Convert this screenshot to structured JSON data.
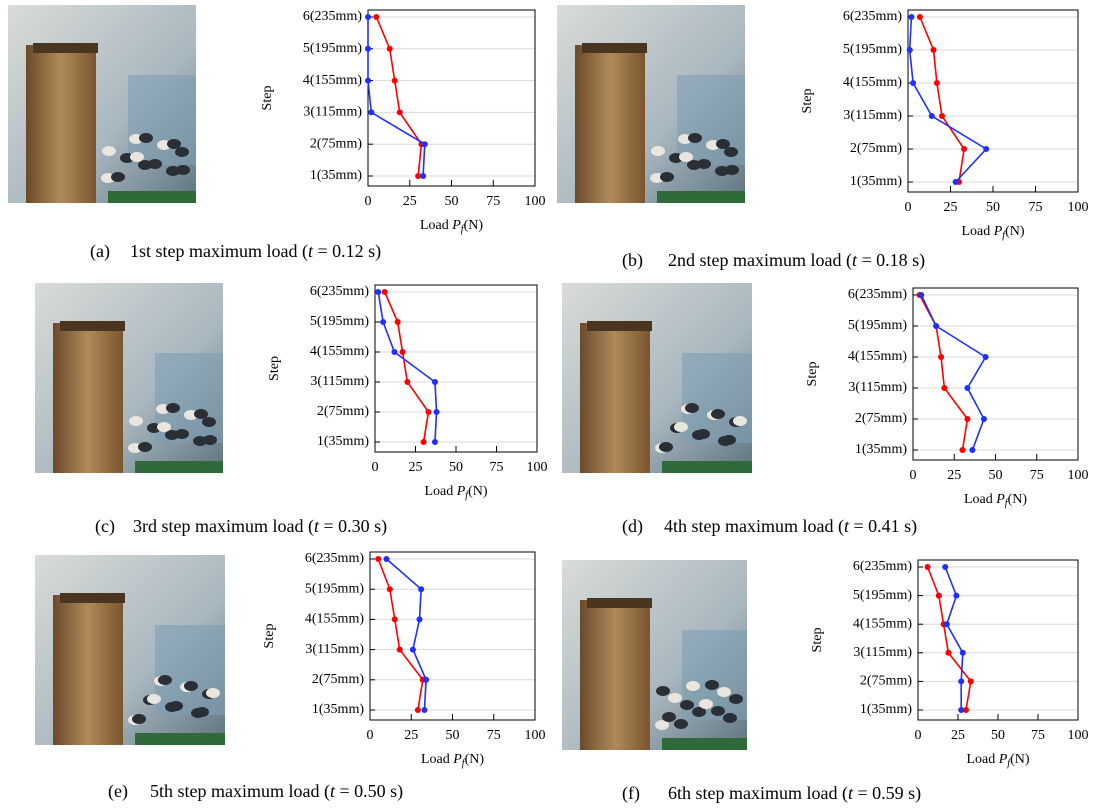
{
  "chart_data": [
    {
      "type": "line",
      "label": "(a)",
      "caption": [
        "1st step maximum load (",
        "t",
        " = 0.12 s)"
      ],
      "x_label": [
        "Load ",
        "P",
        "f",
        "(N)"
      ],
      "y_label": "Step",
      "categories": [
        "1(35mm)",
        "2(75mm)",
        "3(115mm)",
        "4(155mm)",
        "5(195mm)",
        "6(235mm)"
      ],
      "xlim": [
        0,
        100
      ],
      "xticks": [
        0,
        25,
        50,
        75,
        100
      ],
      "grid": true,
      "series": [
        {
          "color": "#ff0000",
          "values": [
            30,
            32,
            19,
            16,
            13,
            5
          ]
        },
        {
          "color": "#1f2fff",
          "values": [
            33,
            34,
            2,
            0,
            0,
            0
          ]
        }
      ]
    },
    {
      "type": "line",
      "label": "(b)",
      "caption": [
        "2nd step maximum load (",
        "t",
        " = 0.18 s)"
      ],
      "x_label": [
        "Load ",
        "P",
        "f",
        "(N)"
      ],
      "y_label": "Step",
      "categories": [
        "1(35mm)",
        "2(75mm)",
        "3(115mm)",
        "4(155mm)",
        "5(195mm)",
        "6(235mm)"
      ],
      "xlim": [
        0,
        100
      ],
      "xticks": [
        0,
        25,
        50,
        75,
        100
      ],
      "grid": true,
      "series": [
        {
          "color": "#ff0000",
          "values": [
            30,
            33,
            20,
            17,
            15,
            7
          ]
        },
        {
          "color": "#1f2fff",
          "values": [
            28,
            46,
            14,
            3,
            1,
            2
          ]
        }
      ]
    },
    {
      "type": "line",
      "label": "(c)",
      "caption": [
        "3rd step maximum load (",
        "t",
        " = 0.30 s)"
      ],
      "x_label": [
        "Load ",
        "P",
        "f",
        "(N)"
      ],
      "y_label": "Step",
      "categories": [
        "1(35mm)",
        "2(75mm)",
        "3(115mm)",
        "4(155mm)",
        "5(195mm)",
        "6(235mm)"
      ],
      "xlim": [
        0,
        100
      ],
      "xticks": [
        0,
        25,
        50,
        75,
        100
      ],
      "grid": true,
      "series": [
        {
          "color": "#ff0000",
          "values": [
            30,
            33,
            20,
            17,
            14,
            6
          ]
        },
        {
          "color": "#1f2fff",
          "values": [
            37,
            38,
            37,
            12,
            5,
            2
          ]
        }
      ]
    },
    {
      "type": "line",
      "label": "(d)",
      "caption": [
        "4th step maximum load (",
        "t",
        " = 0.41 s)"
      ],
      "x_label": [
        "Load ",
        "P",
        "f",
        "(N)"
      ],
      "y_label": "Step",
      "categories": [
        "1(35mm)",
        "2(75mm)",
        "3(115mm)",
        "4(155mm)",
        "5(195mm)",
        "6(235mm)"
      ],
      "xlim": [
        0,
        100
      ],
      "xticks": [
        0,
        25,
        50,
        75,
        100
      ],
      "grid": true,
      "series": [
        {
          "color": "#ff0000",
          "values": [
            30,
            33,
            19,
            17,
            14,
            4
          ]
        },
        {
          "color": "#1f2fff",
          "values": [
            36,
            43,
            33,
            44,
            14,
            5
          ]
        }
      ]
    },
    {
      "type": "line",
      "label": "(e)",
      "caption": [
        "5th step maximum load (",
        "t",
        " = 0.50 s)"
      ],
      "x_label": [
        "Load ",
        "P",
        "f",
        "(N)"
      ],
      "y_label": "Step",
      "categories": [
        "1(35mm)",
        "2(75mm)",
        "3(115mm)",
        "4(155mm)",
        "5(195mm)",
        "6(235mm)"
      ],
      "xlim": [
        0,
        100
      ],
      "xticks": [
        0,
        25,
        50,
        75,
        100
      ],
      "grid": true,
      "series": [
        {
          "color": "#ff0000",
          "values": [
            29,
            32,
            18,
            15,
            12,
            5
          ]
        },
        {
          "color": "#1f2fff",
          "values": [
            33,
            34,
            26,
            30,
            31,
            10
          ]
        }
      ]
    },
    {
      "type": "line",
      "label": "(f)",
      "caption": [
        "6th step maximum load (",
        "t",
        " = 0.59 s)"
      ],
      "x_label": [
        "Load ",
        "P",
        "f",
        "(N)"
      ],
      "y_label": "Step",
      "categories": [
        "1(35mm)",
        "2(75mm)",
        "3(115mm)",
        "4(155mm)",
        "5(195mm)",
        "6(235mm)"
      ],
      "xlim": [
        0,
        100
      ],
      "xticks": [
        0,
        25,
        50,
        75,
        100
      ],
      "grid": true,
      "series": [
        {
          "color": "#ff0000",
          "values": [
            30,
            33,
            19,
            16,
            13,
            6
          ]
        },
        {
          "color": "#1f2fff",
          "values": [
            27,
            27,
            28,
            18,
            24,
            17
          ]
        }
      ]
    }
  ]
}
